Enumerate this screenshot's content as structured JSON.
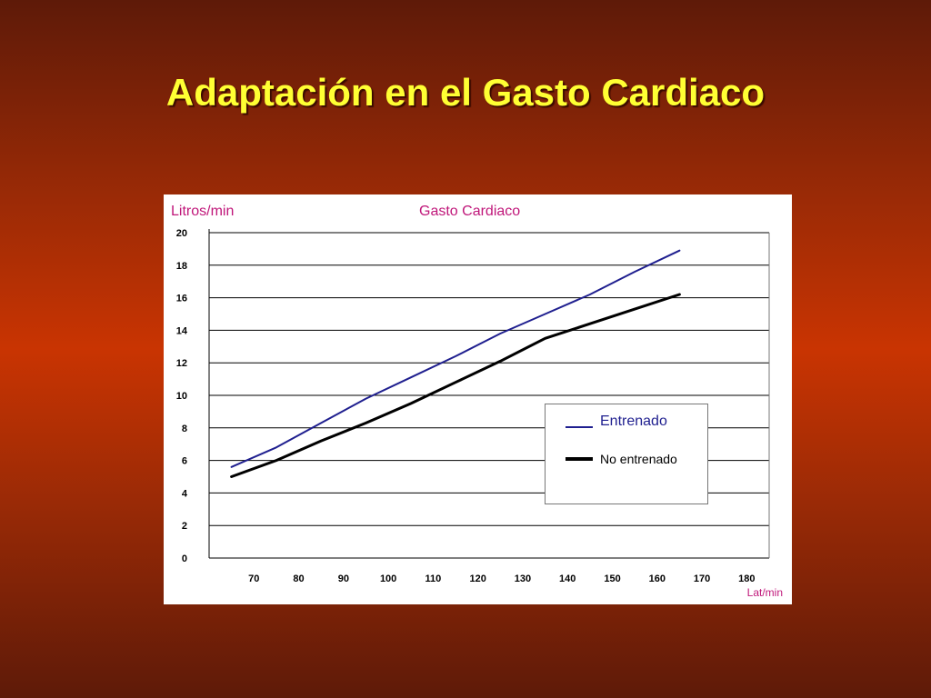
{
  "slide": {
    "title": "Adaptación en el Gasto Cardiaco"
  },
  "chart_data": {
    "type": "line",
    "title": "Gasto Cardiaco",
    "ylabel": "Litros/min",
    "xlabel": "Lat/min",
    "x_ticks": [
      "70",
      "80",
      "90",
      "100",
      "110",
      "120",
      "130",
      "140",
      "150",
      "160",
      "170",
      "180"
    ],
    "y_ticks": [
      "0",
      "2",
      "4",
      "6",
      "8",
      "10",
      "12",
      "14",
      "16",
      "18",
      "20"
    ],
    "xlim": [
      60,
      185
    ],
    "ylim": [
      0,
      20
    ],
    "grid": "horizontal",
    "legend": {
      "position": "center-right"
    },
    "series": [
      {
        "name": "Entrenado",
        "color": "#1f1f8f",
        "points": [
          [
            65,
            5.6
          ],
          [
            75,
            6.8
          ],
          [
            85,
            8.3
          ],
          [
            95,
            9.8
          ],
          [
            105,
            11.1
          ],
          [
            115,
            12.4
          ],
          [
            125,
            13.8
          ],
          [
            135,
            15.0
          ],
          [
            145,
            16.2
          ],
          [
            155,
            17.6
          ],
          [
            165,
            18.9
          ]
        ]
      },
      {
        "name": "No entrenado",
        "color": "#000000",
        "points": [
          [
            65,
            5.0
          ],
          [
            75,
            6.0
          ],
          [
            85,
            7.2
          ],
          [
            95,
            8.3
          ],
          [
            105,
            9.5
          ],
          [
            115,
            10.8
          ],
          [
            125,
            12.1
          ],
          [
            135,
            13.5
          ],
          [
            145,
            14.4
          ],
          [
            155,
            15.3
          ],
          [
            165,
            16.2
          ]
        ]
      }
    ]
  }
}
